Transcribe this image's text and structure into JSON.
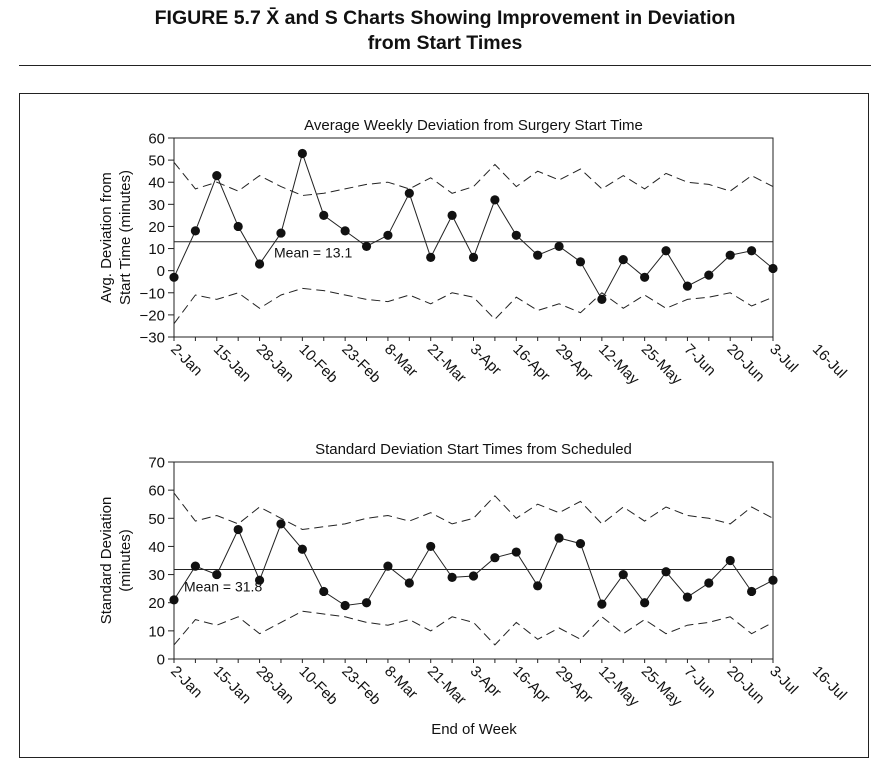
{
  "figure": {
    "title_line1": "FIGURE 5.7    X̄ and S Charts Showing Improvement in Deviation",
    "title_line2": "from Start Times"
  },
  "chart_data": [
    {
      "type": "line",
      "title": "Average Weekly Deviation from Surgery Start Time",
      "xlabel": "",
      "ylabel_line1": "Avg. Deviation from",
      "ylabel_line2": "Start Time (minutes)",
      "ylim": [
        -30,
        60
      ],
      "yticks": [
        -30,
        -20,
        -10,
        0,
        10,
        20,
        30,
        40,
        50,
        60
      ],
      "xtick_labels": [
        "2-Jan",
        "15-Jan",
        "28-Jan",
        "10-Feb",
        "23-Feb",
        "8-Mar",
        "21-Mar",
        "3-Apr",
        "16-Apr",
        "29-Apr",
        "12-May",
        "25-May",
        "7-Jun",
        "20-Jun",
        "3-Jul",
        "16-Jul"
      ],
      "num_points": 29,
      "mean": 13.1,
      "mean_label": "Mean = 13.1",
      "series": [
        {
          "values": [
            -3,
            18,
            43,
            20,
            3,
            17,
            53,
            25,
            18,
            11,
            16,
            35,
            6,
            25,
            6,
            32,
            16,
            7,
            11,
            4,
            -13,
            5,
            -3,
            9,
            -7,
            -2,
            7,
            9,
            1
          ]
        },
        {
          "values": [
            49,
            37,
            40,
            36,
            43,
            38,
            34,
            35,
            37,
            39,
            40,
            37,
            42,
            35,
            38,
            48,
            38,
            45,
            41,
            46,
            37,
            43,
            37,
            44,
            40,
            39,
            36,
            43,
            38
          ]
        },
        {
          "values": [
            -24,
            -11,
            -13,
            -10,
            -17,
            -11,
            -8,
            -9,
            -11,
            -13,
            -14,
            -11,
            -15,
            -10,
            -12,
            -22,
            -12,
            -18,
            -15,
            -19,
            -10,
            -17,
            -11,
            -17,
            -13,
            -12,
            -10,
            -16,
            -12
          ]
        }
      ]
    },
    {
      "type": "line",
      "title": "Standard Deviation Start Times from Scheduled",
      "xlabel": "End of Week",
      "ylabel_line1": "Standard Deviation",
      "ylabel_line2": "(minutes)",
      "ylim": [
        0,
        70
      ],
      "yticks": [
        0,
        10,
        20,
        30,
        40,
        50,
        60,
        70
      ],
      "xtick_labels": [
        "2-Jan",
        "15-Jan",
        "28-Jan",
        "10-Feb",
        "23-Feb",
        "8-Mar",
        "21-Mar",
        "3-Apr",
        "16-Apr",
        "29-Apr",
        "12-May",
        "25-May",
        "7-Jun",
        "20-Jun",
        "3-Jul",
        "16-Jul"
      ],
      "num_points": 29,
      "mean": 31.8,
      "mean_label": "Mean = 31.8",
      "series": [
        {
          "values": [
            21,
            33,
            30,
            46,
            28,
            48,
            39,
            24,
            19,
            20,
            33,
            27,
            40,
            29,
            29.5,
            36,
            38,
            26,
            43,
            41,
            19.5,
            30,
            20,
            31,
            22,
            27,
            35,
            24,
            28
          ]
        },
        {
          "values": [
            59,
            49,
            51,
            48,
            54,
            50,
            46,
            47,
            48,
            50,
            51,
            49,
            52,
            48,
            50,
            58,
            50,
            55,
            52,
            56,
            48,
            54,
            49,
            54,
            51,
            50,
            48,
            54,
            50
          ]
        },
        {
          "values": [
            5,
            14,
            12,
            15,
            9,
            13,
            17,
            16,
            15,
            13,
            12,
            14,
            10,
            15,
            13,
            5,
            13,
            7,
            11,
            7,
            15,
            9,
            14,
            9,
            12,
            13,
            15,
            9,
            13
          ]
        }
      ]
    }
  ]
}
